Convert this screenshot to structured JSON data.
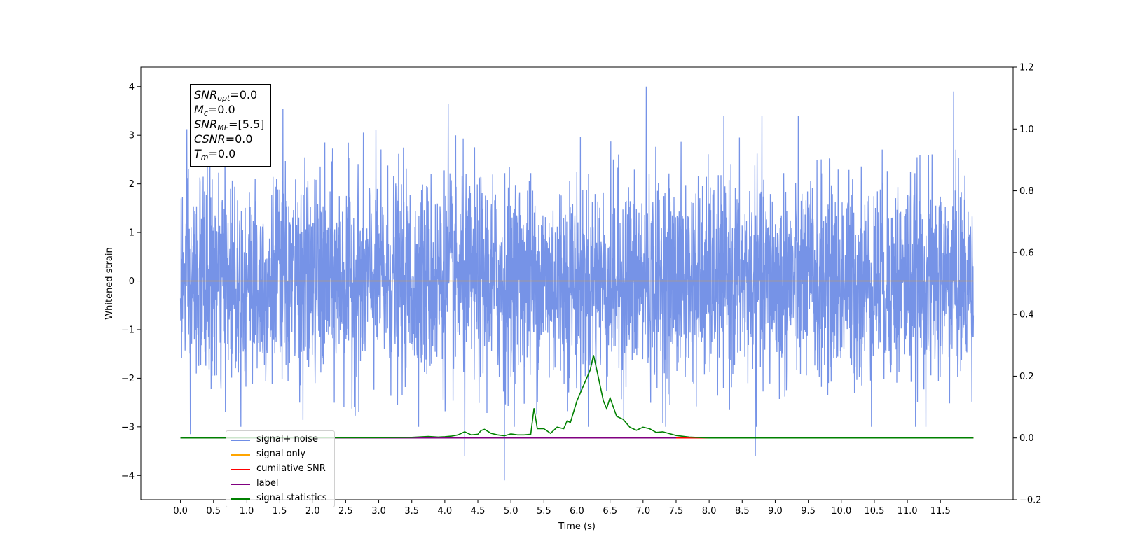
{
  "chart_data": {
    "type": "line",
    "title": "",
    "xlabel": "Time (s)",
    "ylabel": "Whitened strain",
    "xlim": [
      -0.6,
      12.6
    ],
    "ylim": [
      -4.5,
      4.4
    ],
    "y2lim": [
      -0.2,
      1.2
    ],
    "grid": false,
    "legend_position": "lower-left",
    "x_ticks": [
      "0.0",
      "0.5",
      "1.0",
      "1.5",
      "2.0",
      "2.5",
      "3.0",
      "3.5",
      "4.0",
      "4.5",
      "5.0",
      "5.5",
      "6.0",
      "6.5",
      "7.0",
      "7.5",
      "8.0",
      "8.5",
      "9.0",
      "9.5",
      "10.0",
      "10.5",
      "11.0",
      "11.5"
    ],
    "y_ticks": [
      "4",
      "3",
      "2",
      "1",
      "0",
      "−1",
      "−2",
      "−3",
      "−4"
    ],
    "y2_ticks": [
      "1.2",
      "1.0",
      "0.8",
      "0.6",
      "0.4",
      "0.2",
      "0.0",
      "−0.2"
    ],
    "series": [
      {
        "name": "signal+ noise",
        "color": "#6f8de6",
        "axis": "left",
        "description": "noise",
        "amplitude_sigma": 1.0,
        "x_range": [
          0.0,
          12.0
        ],
        "peaks": [
          [
            0.15,
            3.8
          ],
          [
            4.05,
            3.65
          ],
          [
            7.05,
            4.0
          ],
          [
            11.7,
            3.9
          ],
          [
            1.55,
            3.55
          ],
          [
            4.9,
            -4.1
          ],
          [
            8.7,
            -3.6
          ],
          [
            4.3,
            -3.6
          ],
          [
            0.15,
            -3.15
          ]
        ]
      },
      {
        "name": "signal only",
        "color": "#ffa500",
        "axis": "left",
        "x": [
          0.0,
          12.0
        ],
        "values": [
          0.0,
          0.0
        ]
      },
      {
        "name": "cumilative SNR",
        "color": "#ff0000",
        "axis": "right",
        "x": [
          0.0,
          12.0
        ],
        "values": [
          0.0,
          0.0
        ]
      },
      {
        "name": "label",
        "color": "#800080",
        "axis": "right",
        "x": [
          0.0,
          7.5
        ],
        "values": [
          0.0,
          0.0
        ]
      },
      {
        "name": "signal statistics",
        "color": "#008000",
        "axis": "right",
        "x": [
          0.0,
          2.9,
          3.5,
          3.75,
          3.9,
          4.0,
          4.1,
          4.2,
          4.3,
          4.4,
          4.5,
          4.55,
          4.6,
          4.7,
          4.8,
          4.9,
          5.0,
          5.1,
          5.2,
          5.3,
          5.35,
          5.4,
          5.5,
          5.6,
          5.7,
          5.8,
          5.85,
          5.9,
          6.0,
          6.1,
          6.2,
          6.25,
          6.3,
          6.4,
          6.45,
          6.5,
          6.6,
          6.7,
          6.8,
          6.9,
          7.0,
          7.1,
          7.2,
          7.3,
          7.5,
          7.7,
          8.0,
          12.0
        ],
        "values": [
          0.0,
          0.001,
          0.002,
          0.005,
          0.003,
          0.004,
          0.006,
          0.01,
          0.02,
          0.01,
          0.012,
          0.024,
          0.028,
          0.015,
          0.01,
          0.007,
          0.013,
          0.01,
          0.01,
          0.012,
          0.096,
          0.03,
          0.03,
          0.015,
          0.035,
          0.03,
          0.055,
          0.05,
          0.12,
          0.17,
          0.22,
          0.268,
          0.22,
          0.12,
          0.095,
          0.13,
          0.07,
          0.06,
          0.035,
          0.025,
          0.035,
          0.03,
          0.018,
          0.02,
          0.008,
          0.003,
          0.0,
          0.0
        ]
      }
    ],
    "annotation_lines": [
      {
        "sym": "SNR",
        "sub": "opt",
        "rest": "=0.0"
      },
      {
        "sym": "M",
        "sub": "c",
        "rest": "=0.0"
      },
      {
        "sym": "SNR",
        "sub": "MF",
        "rest": "=[5.5]"
      },
      {
        "sym": "CSNR",
        "sub": "",
        "rest": "=0.0"
      },
      {
        "sym": "T",
        "sub": "m",
        "rest": "=0.0"
      }
    ]
  }
}
